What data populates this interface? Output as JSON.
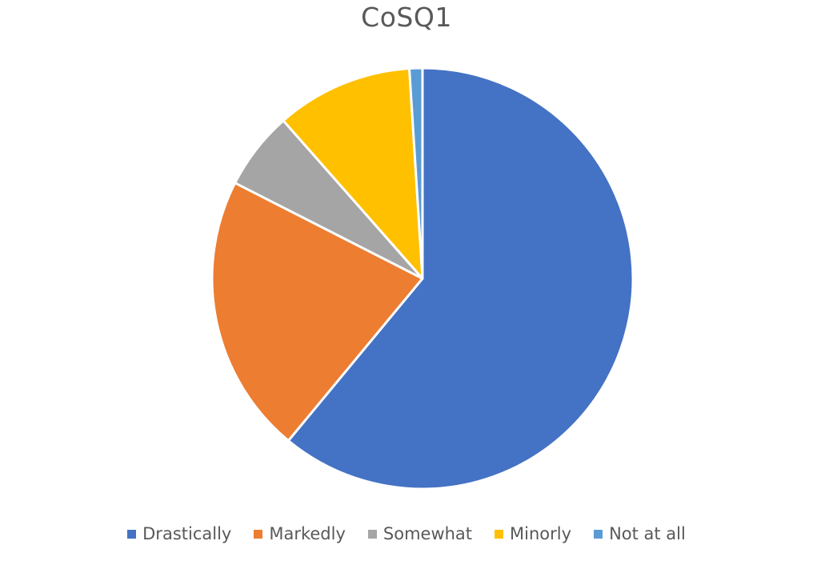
{
  "chart_data": {
    "type": "pie",
    "title": "CoSQ1",
    "categories": [
      "Drastically",
      "Markedly",
      "Somewhat",
      "Minorly",
      "Not at all"
    ],
    "values": [
      61,
      21.5,
      6,
      10.5,
      1
    ],
    "unit": "%",
    "colors": [
      "#4472C4",
      "#ED7D31",
      "#A5A5A5",
      "#FFC000",
      "#5B9BD5"
    ],
    "start_angle_deg": 0,
    "direction": "clockwise",
    "legend_position": "bottom",
    "data_labels": false
  }
}
